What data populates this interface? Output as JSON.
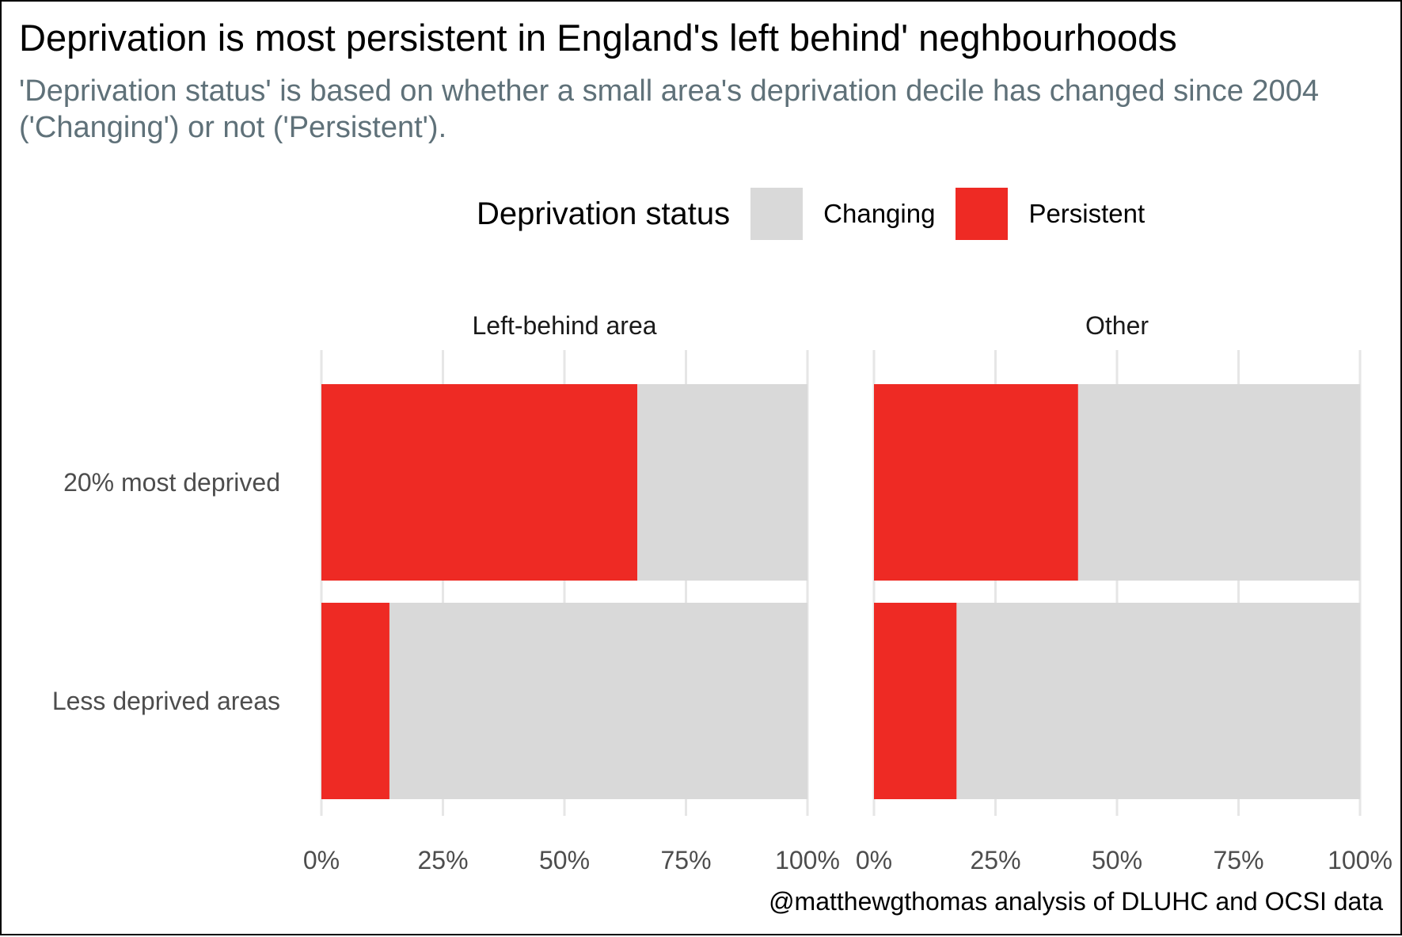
{
  "title": "Deprivation is most persistent in England's left behind' neghbourhoods",
  "subtitle": "'Deprivation status' is based on whether a small area's deprivation decile has changed since 2004 ('Changing') or not ('Persistent').",
  "caption": "@matthewgthomas analysis of DLUHC and OCSI data",
  "legend": {
    "title": "Deprivation status",
    "items": [
      {
        "label": "Changing",
        "color": "#d9d9d9"
      },
      {
        "label": "Persistent",
        "color": "#ee2a24"
      }
    ]
  },
  "chart_data": {
    "type": "bar",
    "orientation": "horizontal",
    "stacked": "percent",
    "categories": [
      "20% most deprived",
      "Less deprived areas"
    ],
    "facets": [
      {
        "name": "Left-behind area",
        "series": [
          {
            "name": "Persistent",
            "values": [
              0.65,
              0.14
            ]
          },
          {
            "name": "Changing",
            "values": [
              0.35,
              0.86
            ]
          }
        ]
      },
      {
        "name": "Other",
        "series": [
          {
            "name": "Persistent",
            "values": [
              0.42,
              0.17
            ]
          },
          {
            "name": "Changing",
            "values": [
              0.58,
              0.83
            ]
          }
        ]
      }
    ],
    "xlim": [
      0,
      1
    ],
    "x_ticks": [
      0,
      0.25,
      0.5,
      0.75,
      1
    ],
    "x_tick_labels": [
      "0%",
      "25%",
      "50%",
      "75%",
      "100%"
    ],
    "grid": "vertical",
    "legend_position": "top",
    "colors": {
      "Changing": "#d9d9d9",
      "Persistent": "#ee2a24"
    }
  }
}
